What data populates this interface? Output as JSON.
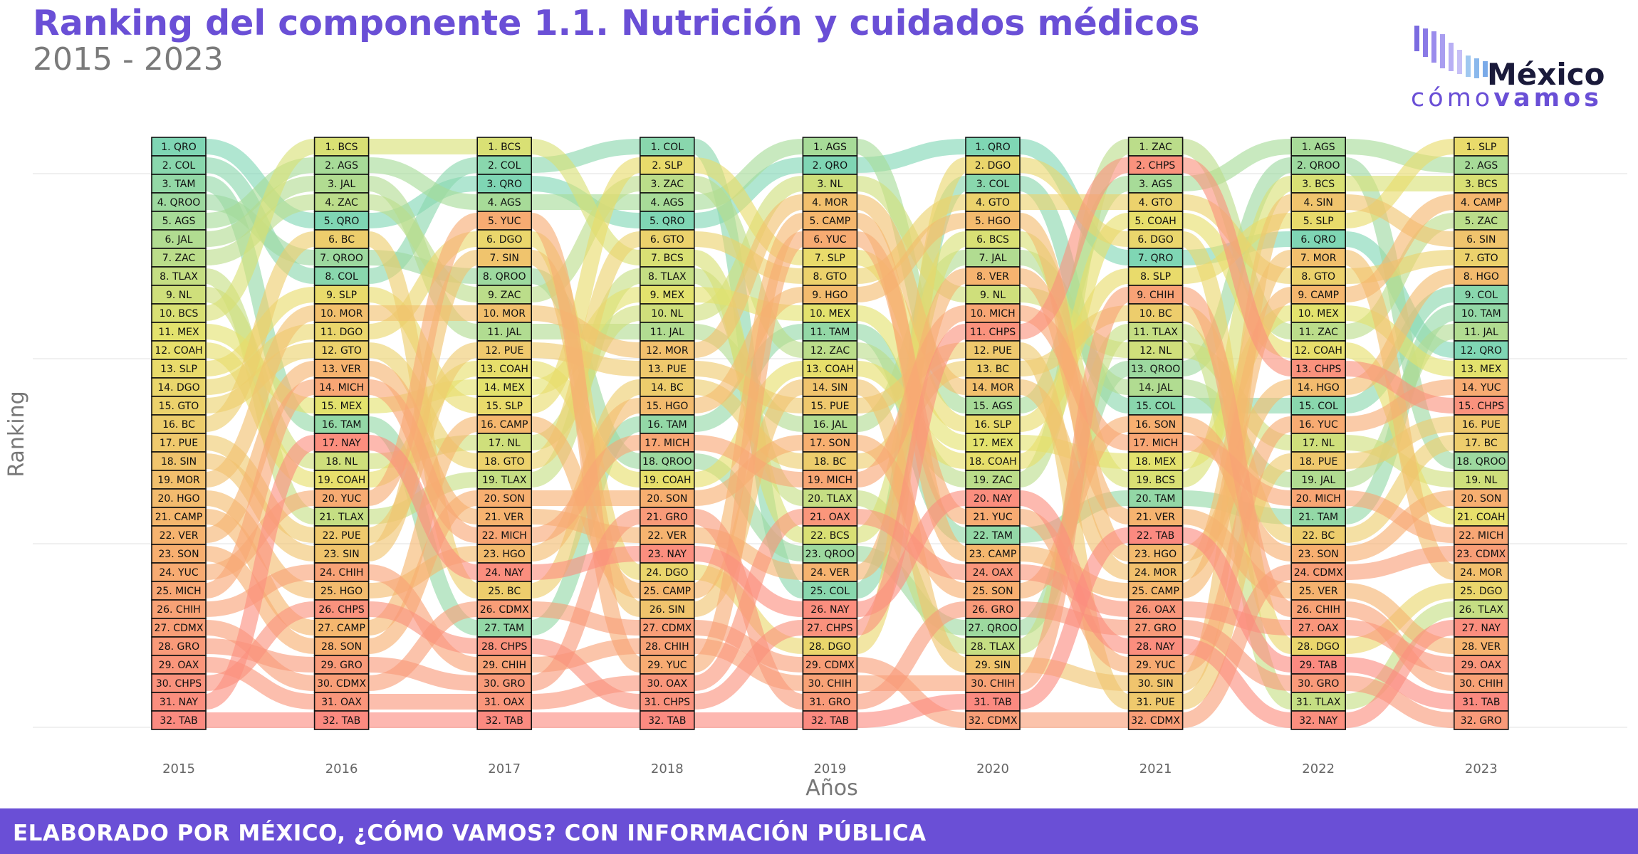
{
  "header": {
    "title": "Ranking del componente 1.1. Nutrición y cuidados médicos",
    "subtitle": "2015 - 2023"
  },
  "logo": {
    "name_main": "México",
    "name_sub_light": "cómo",
    "name_sub_bold": "vamos",
    "bar_color": "#7b6be0",
    "text_color": "#1a1a3a",
    "accent_color": "#6a4fd6"
  },
  "footer": {
    "text": "ELABORADO POR MÉXICO, ¿CÓMO VAMOS? CON INFORMACIÓN PÚBLICA",
    "background": "#6a4fd6"
  },
  "chart_data": {
    "type": "bump",
    "xlabel": "Años",
    "ylabel": "Ranking",
    "years": [
      "2015",
      "2016",
      "2017",
      "2018",
      "2019",
      "2020",
      "2021",
      "2022",
      "2023"
    ],
    "rank_range": [
      1,
      32
    ],
    "grid": true,
    "color_scale": [
      "#7fd6b4",
      "#e6e26b",
      "#f6b46e",
      "#fb8a80"
    ],
    "rankings": [
      [
        "QRO",
        "COL",
        "TAM",
        "QROO",
        "AGS",
        "JAL",
        "ZAC",
        "TLAX",
        "NL",
        "BCS",
        "MEX",
        "COAH",
        "SLP",
        "DGO",
        "GTO",
        "BC",
        "PUE",
        "SIN",
        "MOR",
        "HGO",
        "CAMP",
        "VER",
        "SON",
        "YUC",
        "MICH",
        "CHIH",
        "CDMX",
        "GRO",
        "OAX",
        "CHPS",
        "NAY",
        "TAB"
      ],
      [
        "BCS",
        "AGS",
        "JAL",
        "ZAC",
        "QRO",
        "BC",
        "QROO",
        "COL",
        "SLP",
        "MOR",
        "DGO",
        "GTO",
        "VER",
        "MICH",
        "MEX",
        "TAM",
        "NAY",
        "NL",
        "COAH",
        "YUC",
        "TLAX",
        "PUE",
        "SIN",
        "CHIH",
        "HGO",
        "CHPS",
        "CAMP",
        "SON",
        "GRO",
        "CDMX",
        "OAX",
        "TAB"
      ],
      [
        "BCS",
        "COL",
        "QRO",
        "AGS",
        "YUC",
        "DGO",
        "SIN",
        "QROO",
        "ZAC",
        "MOR",
        "JAL",
        "PUE",
        "COAH",
        "MEX",
        "SLP",
        "CAMP",
        "NL",
        "GTO",
        "TLAX",
        "SON",
        "VER",
        "MICH",
        "HGO",
        "NAY",
        "BC",
        "CDMX",
        "TAM",
        "CHPS",
        "CHIH",
        "GRO",
        "OAX",
        "TAB"
      ],
      [
        "COL",
        "SLP",
        "ZAC",
        "AGS",
        "QRO",
        "GTO",
        "BCS",
        "TLAX",
        "MEX",
        "NL",
        "JAL",
        "MOR",
        "PUE",
        "BC",
        "HGO",
        "TAM",
        "MICH",
        "QROO",
        "COAH",
        "SON",
        "GRO",
        "VER",
        "NAY",
        "DGO",
        "CAMP",
        "SIN",
        "CDMX",
        "CHIH",
        "YUC",
        "OAX",
        "CHPS",
        "TAB"
      ],
      [
        "AGS",
        "QRO",
        "NL",
        "MOR",
        "CAMP",
        "YUC",
        "SLP",
        "GTO",
        "HGO",
        "MEX",
        "TAM",
        "ZAC",
        "COAH",
        "SIN",
        "PUE",
        "JAL",
        "SON",
        "BC",
        "MICH",
        "TLAX",
        "OAX",
        "BCS",
        "QROO",
        "VER",
        "COL",
        "NAY",
        "CHPS",
        "DGO",
        "CDMX",
        "CHIH",
        "GRO",
        "TAB"
      ],
      [
        "QRO",
        "DGO",
        "COL",
        "GTO",
        "HGO",
        "BCS",
        "JAL",
        "VER",
        "NL",
        "MICH",
        "CHPS",
        "PUE",
        "BC",
        "MOR",
        "AGS",
        "SLP",
        "MEX",
        "COAH",
        "ZAC",
        "NAY",
        "YUC",
        "TAM",
        "CAMP",
        "OAX",
        "SON",
        "GRO",
        "QROO",
        "TLAX",
        "SIN",
        "CHIH",
        "TAB",
        "CDMX"
      ],
      [
        "ZAC",
        "CHPS",
        "AGS",
        "GTO",
        "COAH",
        "DGO",
        "QRO",
        "SLP",
        "CHIH",
        "BC",
        "TLAX",
        "NL",
        "QROO",
        "JAL",
        "COL",
        "SON",
        "MICH",
        "MEX",
        "BCS",
        "TAM",
        "VER",
        "TAB",
        "HGO",
        "MOR",
        "CAMP",
        "OAX",
        "GRO",
        "NAY",
        "YUC",
        "SIN",
        "PUE",
        "CDMX"
      ],
      [
        "AGS",
        "QROO",
        "BCS",
        "SIN",
        "SLP",
        "QRO",
        "MOR",
        "GTO",
        "CAMP",
        "MEX",
        "ZAC",
        "COAH",
        "CHPS",
        "HGO",
        "COL",
        "YUC",
        "NL",
        "PUE",
        "JAL",
        "MICH",
        "TAM",
        "BC",
        "SON",
        "CDMX",
        "VER",
        "CHIH",
        "OAX",
        "DGO",
        "TAB",
        "GRO",
        "TLAX",
        "NAY"
      ],
      [
        "SLP",
        "AGS",
        "BCS",
        "CAMP",
        "ZAC",
        "SIN",
        "GTO",
        "HGO",
        "COL",
        "TAM",
        "JAL",
        "QRO",
        "MEX",
        "YUC",
        "CHPS",
        "PUE",
        "BC",
        "QROO",
        "NL",
        "SON",
        "COAH",
        "MICH",
        "CDMX",
        "MOR",
        "DGO",
        "TLAX",
        "NAY",
        "VER",
        "OAX",
        "CHIH",
        "TAB",
        "GRO"
      ]
    ]
  }
}
